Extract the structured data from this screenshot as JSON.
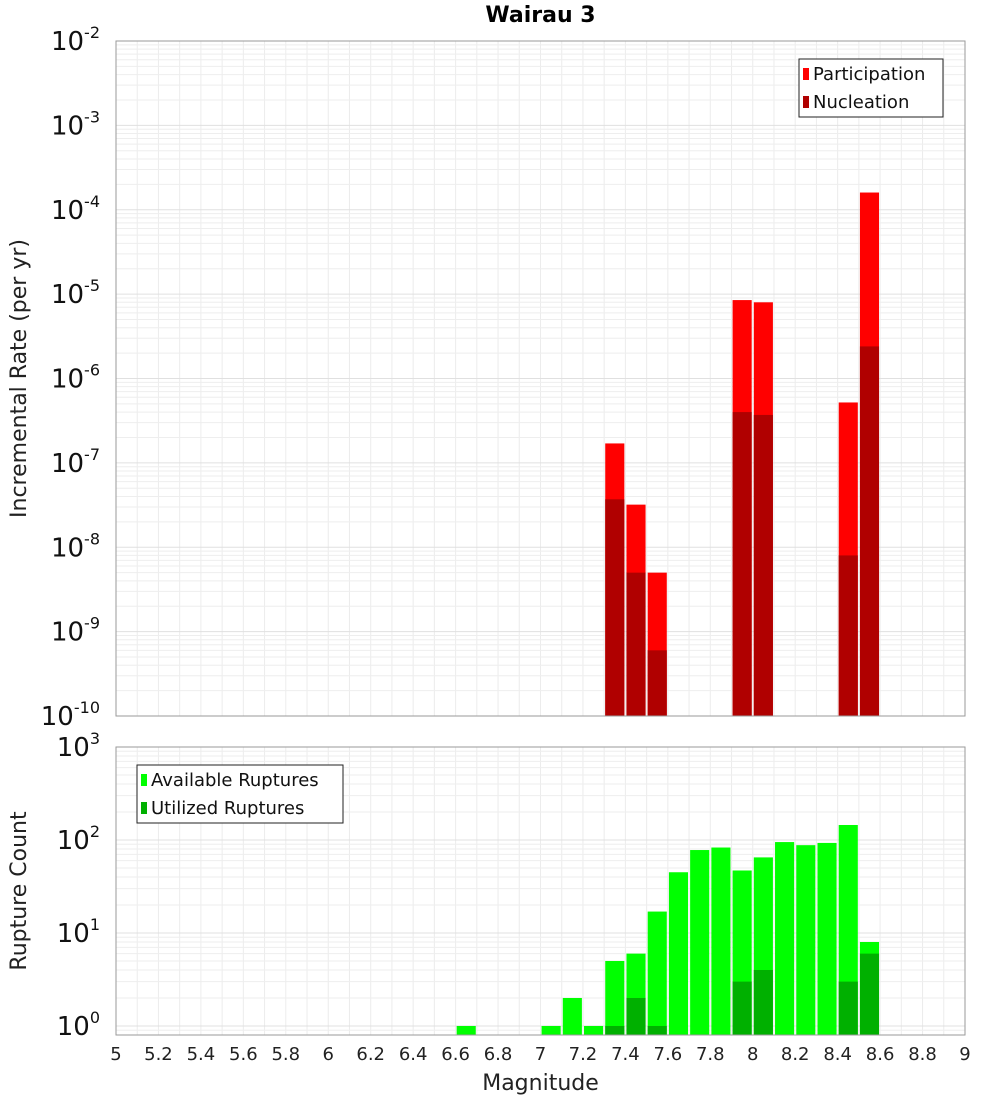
{
  "chart_data": [
    {
      "type": "bar",
      "title": "Wairau 3",
      "xlabel": "",
      "ylabel": "Incremental Rate (per yr)",
      "yscale": "log",
      "ylim": [
        1e-10,
        0.01
      ],
      "xlim": [
        5,
        9
      ],
      "grid": true,
      "legend_position": "top-right",
      "x": [
        7.35,
        7.45,
        7.55,
        7.95,
        8.05,
        8.45,
        8.55
      ],
      "series": [
        {
          "name": "Participation",
          "color": "#ff0000",
          "values": [
            1.7e-07,
            3.2e-08,
            5e-09,
            8.5e-06,
            8e-06,
            5.2e-07,
            0.00016
          ]
        },
        {
          "name": "Nucleation",
          "color": "#b00000",
          "values": [
            3.7e-08,
            5e-09,
            6e-10,
            4e-07,
            3.7e-07,
            8e-09,
            2.4e-06
          ]
        }
      ],
      "ytick_labels": [
        {
          "base": "10",
          "exp": "-10"
        },
        {
          "base": "10",
          "exp": "-9"
        },
        {
          "base": "10",
          "exp": "-8"
        },
        {
          "base": "10",
          "exp": "-7"
        },
        {
          "base": "10",
          "exp": "-6"
        },
        {
          "base": "10",
          "exp": "-5"
        },
        {
          "base": "10",
          "exp": "-4"
        },
        {
          "base": "10",
          "exp": "-3"
        },
        {
          "base": "10",
          "exp": "-2"
        }
      ]
    },
    {
      "type": "bar",
      "title": "",
      "xlabel": "Magnitude",
      "ylabel": "Rupture Count",
      "yscale": "log",
      "ylim": [
        0.8,
        1000
      ],
      "xlim": [
        5,
        9
      ],
      "grid": true,
      "legend_position": "top-left",
      "x": [
        6.65,
        7.05,
        7.15,
        7.25,
        7.35,
        7.45,
        7.55,
        7.65,
        7.75,
        7.85,
        7.95,
        8.05,
        8.15,
        8.25,
        8.35,
        8.45,
        8.55
      ],
      "series": [
        {
          "name": "Available Ruptures",
          "color": "#00ff00",
          "values": [
            1,
            1,
            2,
            1,
            5,
            6,
            17,
            45,
            78,
            83,
            47,
            65,
            95,
            88,
            93,
            145,
            8
          ]
        },
        {
          "name": "Utilized Ruptures",
          "color": "#00b000",
          "values": [
            0,
            0,
            0,
            0,
            1,
            2,
            1,
            0,
            0,
            0,
            3,
            4,
            0,
            0,
            0,
            3,
            6
          ]
        }
      ],
      "ytick_labels": [
        {
          "base": "10",
          "exp": "0"
        },
        {
          "base": "10",
          "exp": "1"
        },
        {
          "base": "10",
          "exp": "2"
        },
        {
          "base": "10",
          "exp": "3"
        }
      ],
      "xtick_labels": [
        "5",
        "5.2",
        "5.4",
        "5.6",
        "5.8",
        "6",
        "6.2",
        "6.4",
        "6.6",
        "6.8",
        "7",
        "7.2",
        "7.4",
        "7.6",
        "7.8",
        "8",
        "8.2",
        "8.4",
        "8.6",
        "8.8",
        "9"
      ]
    }
  ]
}
